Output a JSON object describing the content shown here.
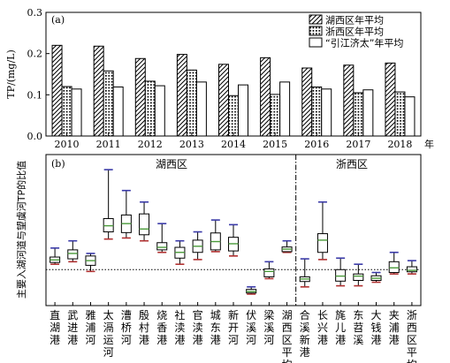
{
  "figure": {
    "top_panel_label": "(a)",
    "bottom_panel_label": "(b)",
    "top_ylabel": "TP/(mg/L)",
    "bottom_ylabel": "主要入湖河道与望虞河TP的比值",
    "top_xunit": "年",
    "region_left": "湖西区",
    "region_right": "浙西区"
  },
  "colors": {
    "box_stroke": "#000000",
    "median": "#4a9a3a",
    "whisker_top": "#3a3aa8",
    "whisker_bottom": "#b03030"
  },
  "chart_data": [
    {
      "type": "bar",
      "panel": "(a)",
      "categories": [
        "2010",
        "2011",
        "2012",
        "2013",
        "2014",
        "2015",
        "2016",
        "2017",
        "2018"
      ],
      "series": [
        {
          "name": "湖西区年平均",
          "pattern": "hatch",
          "values": [
            0.22,
            0.218,
            0.188,
            0.198,
            0.174,
            0.19,
            0.165,
            0.172,
            0.177
          ]
        },
        {
          "name": "浙西区年平均",
          "pattern": "dots",
          "values": [
            0.12,
            0.158,
            0.133,
            0.16,
            0.098,
            0.101,
            0.119,
            0.105,
            0.107
          ]
        },
        {
          "name": "“引江济太”年平均",
          "pattern": "blank",
          "values": [
            0.114,
            0.119,
            0.122,
            0.131,
            0.124,
            0.131,
            0.114,
            0.112,
            0.095
          ]
        }
      ],
      "yticks": [
        "0.0",
        "0.1",
        "0.2",
        "0.3"
      ],
      "ylim": [
        0,
        0.3
      ],
      "ylabel": "TP/(mg/L)",
      "legend_position": "top-right"
    },
    {
      "type": "box",
      "panel": "(b)",
      "categories": [
        "直湖港",
        "武进港",
        "雅浦河",
        "太滆运河",
        "漕桥河",
        "殷村港",
        "烧香港",
        "社渎港",
        "官渎港",
        "城东港",
        "新开河",
        "伏溪河",
        "梁溪河",
        "湖西区平均",
        "合溪新港",
        "长兴港",
        "旄儿港",
        "东苕溪",
        "大钱港",
        "夹浦港",
        "浙西区平均"
      ],
      "boxes": [
        {
          "min": 1.15,
          "q1": 1.2,
          "median": 1.27,
          "q3": 1.35,
          "max": 1.6
        },
        {
          "min": 1.22,
          "q1": 1.3,
          "median": 1.45,
          "q3": 1.55,
          "max": 1.8
        },
        {
          "min": 0.95,
          "q1": 1.12,
          "median": 1.25,
          "q3": 1.38,
          "max": 1.45
        },
        {
          "min": 1.85,
          "q1": 2.05,
          "median": 2.22,
          "q3": 2.42,
          "max": 3.78
        },
        {
          "min": 1.88,
          "q1": 2.03,
          "median": 2.28,
          "q3": 2.52,
          "max": 3.2
        },
        {
          "min": 1.8,
          "q1": 1.97,
          "median": 2.13,
          "q3": 2.55,
          "max": 2.88
        },
        {
          "min": 1.48,
          "q1": 1.55,
          "median": 1.62,
          "q3": 1.75,
          "max": 2.28
        },
        {
          "min": 1.15,
          "q1": 1.32,
          "median": 1.48,
          "q3": 1.62,
          "max": 1.8
        },
        {
          "min": 1.28,
          "q1": 1.48,
          "median": 1.65,
          "q3": 1.82,
          "max": 2.05
        },
        {
          "min": 1.5,
          "q1": 1.55,
          "median": 1.78,
          "q3": 2.02,
          "max": 2.38
        },
        {
          "min": 1.38,
          "q1": 1.52,
          "median": 1.72,
          "q3": 1.9,
          "max": 2.25
        },
        {
          "min": 0.32,
          "q1": 0.35,
          "median": 0.39,
          "q3": 0.45,
          "max": 0.52
        },
        {
          "min": 0.75,
          "q1": 0.8,
          "median": 0.95,
          "q3": 1.02,
          "max": 1.22
        },
        {
          "min": 1.48,
          "q1": 1.5,
          "median": 1.57,
          "q3": 1.63,
          "max": 1.8
        },
        {
          "min": 0.52,
          "q1": 0.67,
          "median": 0.74,
          "q3": 0.8,
          "max": 1.3
        },
        {
          "min": 1.28,
          "q1": 1.48,
          "median": 1.82,
          "q3": 2.0,
          "max": 2.88
        },
        {
          "min": 0.55,
          "q1": 0.68,
          "median": 0.82,
          "q3": 1.0,
          "max": 1.32
        },
        {
          "min": 0.55,
          "q1": 0.7,
          "median": 0.82,
          "q3": 0.88,
          "max": 1.15
        },
        {
          "min": 0.65,
          "q1": 0.7,
          "median": 0.76,
          "q3": 0.83,
          "max": 0.92
        },
        {
          "min": 0.88,
          "q1": 0.92,
          "median": 1.05,
          "q3": 1.22,
          "max": 1.48
        },
        {
          "min": 0.88,
          "q1": 0.94,
          "median": 0.98,
          "q3": 1.08,
          "max": 1.25
        }
      ],
      "ylim": [
        0,
        4.2
      ],
      "reference_line": 1.0,
      "group_divider_after_index": 13,
      "ylabel": "主要入湖河道与望虞河TP的比值",
      "region_labels": [
        "湖西区",
        "浙西区"
      ]
    }
  ]
}
